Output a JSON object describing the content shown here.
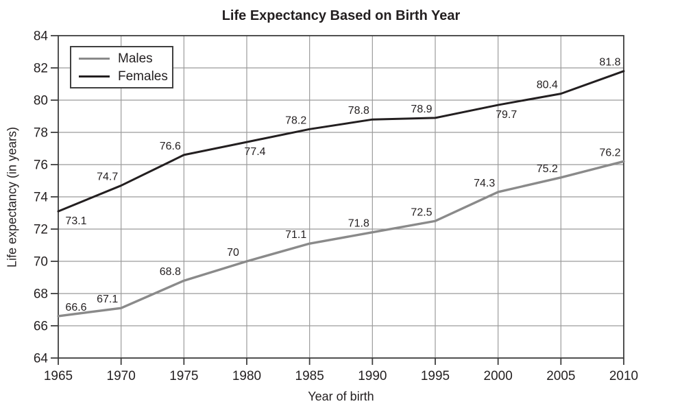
{
  "title": "Life Expectancy Based on Birth Year",
  "chart_data": {
    "type": "line",
    "x": [
      1965,
      1970,
      1975,
      1980,
      1985,
      1990,
      1995,
      2000,
      2005,
      2010
    ],
    "series": [
      {
        "name": "Males",
        "color": "#8a8a8a",
        "stroke_width": 3.4,
        "values": [
          66.6,
          67.1,
          68.8,
          70,
          71.1,
          71.8,
          72.5,
          74.3,
          75.2,
          76.2
        ],
        "label_pos": [
          "above",
          "above",
          "above",
          "above",
          "above",
          "above",
          "above",
          "above",
          "above",
          "above"
        ]
      },
      {
        "name": "Females",
        "color": "#231f20",
        "stroke_width": 3.0,
        "values": [
          73.1,
          74.7,
          76.6,
          77.4,
          78.2,
          78.8,
          78.9,
          79.7,
          80.4,
          81.8
        ],
        "label_pos": [
          "below",
          "above",
          "above",
          "below",
          "above",
          "above",
          "above",
          "below",
          "above",
          "above"
        ]
      }
    ],
    "xlabel": "Year of birth",
    "ylabel": "Life expectancy (in years)",
    "ylim": [
      64,
      84
    ],
    "ytick_step": 2,
    "grid": true,
    "legend_position": "top-left",
    "colors": {
      "grid": "#9b9b9b",
      "axis": "#3d3d3d",
      "text": "#231f20",
      "background": "#ffffff"
    }
  }
}
